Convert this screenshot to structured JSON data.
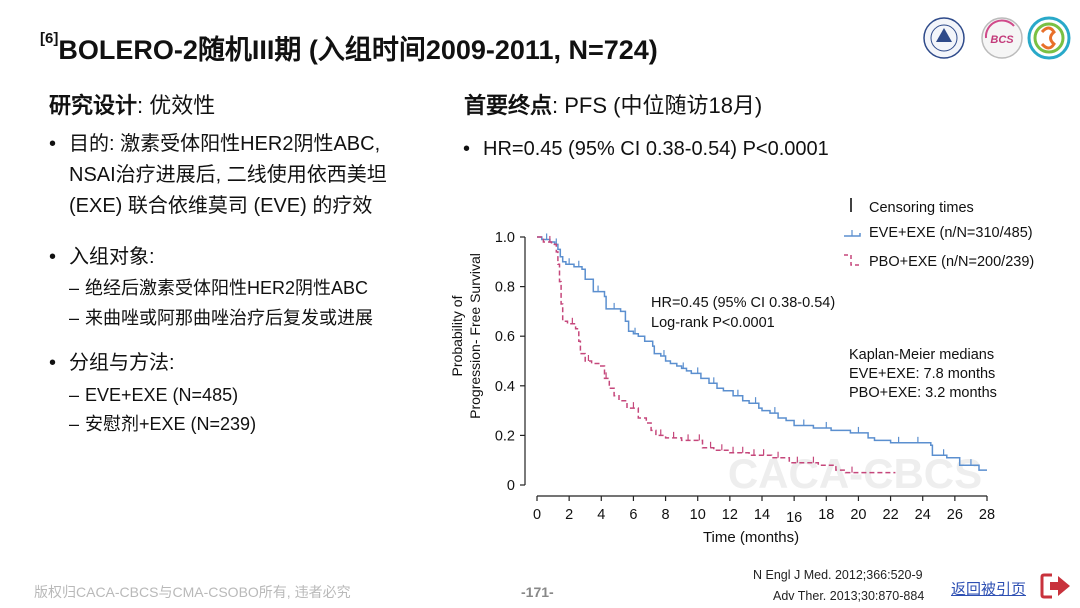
{
  "slide": {
    "title_sup": "[6]",
    "title": "BOLERO-2随机III期 (入组时间2009-2011, N=724)"
  },
  "left": {
    "heading_bold": "研究设计",
    "heading_rest": ": 优效性",
    "bullet1_lines": [
      "目的: 激素受体阳性HER2阴性ABC,",
      "NSAI治疗进展后, 二线使用依西美坦",
      "(EXE) 联合依维莫司 (EVE) 的疗效"
    ],
    "bullet2": "入组对象:",
    "bullet2_subs": [
      "绝经后激素受体阳性HER2阴性ABC",
      "来曲唑或阿那曲唑治疗后复发或进展"
    ],
    "bullet3": "分组与方法:",
    "bullet3_subs": [
      "EVE+EXE (N=485)",
      "安慰剂+EXE (N=239)"
    ]
  },
  "right": {
    "heading_bold": "首要终点",
    "heading_rest": ": PFS (中位随访18月)",
    "bullet": "HR=0.45 (95% CI 0.38-0.54) P<0.0001"
  },
  "chart_data": {
    "type": "line",
    "subtype": "kaplan-meier",
    "xlabel": "Time (months)",
    "ylabel_lines": [
      "Probability of",
      "Progression- Free Survival"
    ],
    "xticks": [
      "0",
      "2",
      "4",
      "6",
      "8",
      "10",
      "12",
      "14",
      "16",
      "18",
      "20",
      "22",
      "24",
      "26",
      "28"
    ],
    "yticks": [
      "0",
      "0.2",
      "0.4",
      "0.6",
      "0.8",
      "1.0"
    ],
    "xlim": [
      0,
      28
    ],
    "ylim": [
      0,
      1.0
    ],
    "legend_position": "top-right",
    "legend": {
      "censor_label": "Censoring times",
      "eve_label": "EVE+EXE (n/N=310/485)",
      "pbo_label": "PBO+EXE (n/N=200/239)"
    },
    "annotation_hr": [
      "HR=0.45 (95% CI 0.38-0.54)",
      "Log-rank P<0.0001"
    ],
    "annotation_medians": [
      "Kaplan-Meier medians",
      "EVE+EXE: 7.8 months",
      "PBO+EXE: 3.2 months"
    ],
    "watermark": "CACA-CBCS",
    "series": [
      {
        "name": "EVE+EXE",
        "color": "#5b8fcf",
        "dash": false,
        "points": [
          [
            0,
            1.0
          ],
          [
            0.3,
            0.99
          ],
          [
            0.8,
            0.98
          ],
          [
            1.1,
            0.97
          ],
          [
            1.3,
            0.95
          ],
          [
            1.45,
            0.92
          ],
          [
            1.6,
            0.9
          ],
          [
            1.8,
            0.89
          ],
          [
            2.3,
            0.88
          ],
          [
            2.8,
            0.87
          ],
          [
            3.0,
            0.83
          ],
          [
            3.5,
            0.78
          ],
          [
            4.2,
            0.76
          ],
          [
            4.3,
            0.71
          ],
          [
            5.2,
            0.7
          ],
          [
            5.5,
            0.66
          ],
          [
            5.7,
            0.62
          ],
          [
            6.0,
            0.61
          ],
          [
            6.3,
            0.6
          ],
          [
            6.7,
            0.58
          ],
          [
            7.2,
            0.56
          ],
          [
            7.3,
            0.53
          ],
          [
            7.7,
            0.52
          ],
          [
            8.0,
            0.5
          ],
          [
            8.3,
            0.49
          ],
          [
            8.7,
            0.48
          ],
          [
            9.0,
            0.47
          ],
          [
            9.3,
            0.46
          ],
          [
            9.6,
            0.45
          ],
          [
            10.2,
            0.43
          ],
          [
            10.7,
            0.41
          ],
          [
            11.2,
            0.39
          ],
          [
            11.6,
            0.38
          ],
          [
            12.2,
            0.36
          ],
          [
            12.8,
            0.34
          ],
          [
            13.2,
            0.33
          ],
          [
            13.8,
            0.31
          ],
          [
            14.0,
            0.3
          ],
          [
            14.5,
            0.29
          ],
          [
            15.0,
            0.27
          ],
          [
            15.5,
            0.26
          ],
          [
            16.0,
            0.24
          ],
          [
            17.2,
            0.23
          ],
          [
            18.3,
            0.22
          ],
          [
            19.5,
            0.21
          ],
          [
            20.6,
            0.19
          ],
          [
            21.0,
            0.18
          ],
          [
            22.0,
            0.17
          ],
          [
            24.5,
            0.16
          ],
          [
            24.6,
            0.12
          ],
          [
            25.5,
            0.11
          ],
          [
            26.3,
            0.08
          ],
          [
            27.5,
            0.07
          ],
          [
            27.5,
            0.06
          ],
          [
            28.0,
            0.06
          ]
        ],
        "censor_x": [
          0.6,
          1.2,
          2.0,
          2.6,
          3.8,
          4.8,
          6.1,
          7.9,
          9.1,
          10.0,
          11.0,
          12.5,
          13.6,
          14.8,
          16.6,
          18.0,
          20.0,
          22.5,
          23.7,
          25.3,
          27.0
        ]
      },
      {
        "name": "PBO+EXE",
        "color": "#c5477b",
        "dash": true,
        "points": [
          [
            0,
            1.0
          ],
          [
            0.4,
            0.98
          ],
          [
            0.9,
            0.97
          ],
          [
            1.2,
            0.94
          ],
          [
            1.3,
            0.89
          ],
          [
            1.4,
            0.82
          ],
          [
            1.5,
            0.73
          ],
          [
            1.6,
            0.66
          ],
          [
            1.9,
            0.65
          ],
          [
            2.4,
            0.63
          ],
          [
            2.6,
            0.58
          ],
          [
            2.7,
            0.53
          ],
          [
            3.0,
            0.5
          ],
          [
            3.4,
            0.49
          ],
          [
            3.9,
            0.48
          ],
          [
            4.2,
            0.43
          ],
          [
            4.5,
            0.39
          ],
          [
            4.8,
            0.36
          ],
          [
            5.1,
            0.34
          ],
          [
            5.6,
            0.31
          ],
          [
            6.3,
            0.27
          ],
          [
            6.8,
            0.25
          ],
          [
            7.1,
            0.22
          ],
          [
            7.4,
            0.2
          ],
          [
            8.0,
            0.19
          ],
          [
            9.0,
            0.18
          ],
          [
            10.3,
            0.15
          ],
          [
            11.0,
            0.14
          ],
          [
            12.0,
            0.13
          ],
          [
            13.2,
            0.12
          ],
          [
            14.6,
            0.11
          ],
          [
            15.7,
            0.09
          ],
          [
            17.5,
            0.08
          ],
          [
            18.6,
            0.06
          ],
          [
            19.2,
            0.05
          ],
          [
            21.0,
            0.05
          ],
          [
            22.3,
            0.05
          ]
        ],
        "censor_x": [
          0.8,
          2.2,
          3.2,
          4.3,
          6.0,
          7.7,
          8.5,
          9.4,
          10.1,
          10.8,
          11.5,
          12.2,
          12.8,
          13.5,
          14.1,
          15.0,
          16.2,
          17.2,
          19.6
        ]
      }
    ]
  },
  "footer": {
    "copyright": "版权归CACA-CBCS与CMA-CSOBO所有, 违者必究",
    "page": "-171-",
    "ref1": "N Engl J Med. 2012;366:520-9",
    "ref2": "Adv Ther. 2013;30:870-884",
    "back_label": "返回被引页"
  },
  "colors": {
    "eve_line": "#5b8fcf",
    "pbo_line": "#c5477b",
    "back_link": "#2d4fb3",
    "back_icon": "#c8323c"
  }
}
